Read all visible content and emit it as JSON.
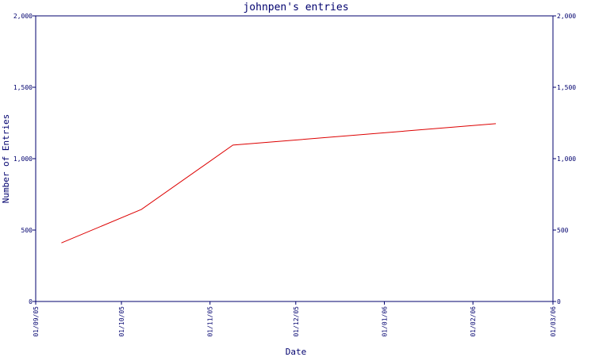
{
  "chart_data": {
    "type": "line",
    "title": "johnpen's entries",
    "xlabel": "Date",
    "ylabel": "Number of Entries",
    "x_ticks": [
      "01/09/05",
      "01/10/05",
      "01/11/05",
      "01/12/05",
      "01/01/06",
      "01/02/06",
      "01/03/06"
    ],
    "xlim": [
      "2005-09-01",
      "2006-03-01"
    ],
    "ylim": [
      0,
      2000
    ],
    "y_ticks": [
      0,
      500,
      1000,
      1500,
      2000
    ],
    "y_tick_labels": [
      "0",
      "500",
      "1,000",
      "1,500",
      "2,000"
    ],
    "y_axis_sides": [
      "left",
      "right"
    ],
    "grid": false,
    "legend": "none",
    "series": [
      {
        "color": "#dd0000",
        "x": [
          "2005-09-10",
          "2005-10-08",
          "2005-11-09",
          "2006-02-09"
        ],
        "y": [
          410,
          645,
          1095,
          1245
        ]
      }
    ]
  }
}
